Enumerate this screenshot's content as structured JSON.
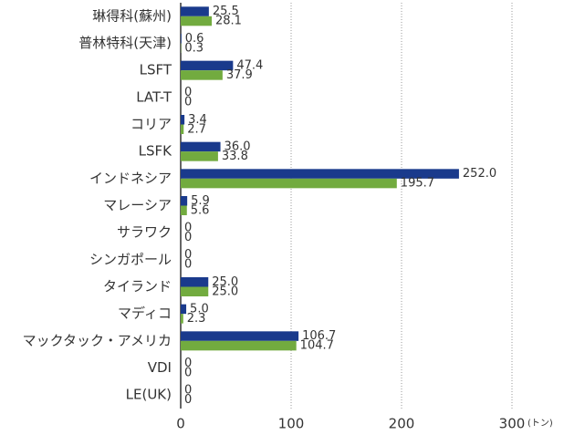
{
  "chart_data": {
    "type": "barh",
    "categories": [
      "琳得科(蘇州)",
      "普林特科(天津)",
      "LSFT",
      "LAT-T",
      "コリア",
      "LSFK",
      "インドネシア",
      "マレーシア",
      "サラワク",
      "シンガポール",
      "タイランド",
      "マディコ",
      "マックタック・アメリカ",
      "VDI",
      "LE(UK)"
    ],
    "series": [
      {
        "color": "#1a3a8c",
        "values": [
          25.5,
          0.6,
          47.4,
          0,
          3.4,
          36.0,
          252.0,
          5.9,
          0,
          0,
          25.0,
          5.0,
          106.7,
          0,
          0
        ],
        "value_labels": [
          "25.5",
          "0.6",
          "47.4",
          "0",
          "3.4",
          "36.0",
          "252.0",
          "5.9",
          "0",
          "0",
          "25.0",
          "5.0",
          "106.7",
          "0",
          "0"
        ]
      },
      {
        "color": "#72ab3f",
        "values": [
          28.1,
          0.3,
          37.9,
          0,
          2.7,
          33.8,
          195.7,
          5.6,
          0,
          0,
          25.0,
          2.3,
          104.7,
          0,
          0
        ],
        "value_labels": [
          "28.1",
          "0.3",
          "37.9",
          "0",
          "2.7",
          "33.8",
          "195.7",
          "5.6",
          "0",
          "0",
          "25.0",
          "2.3",
          "104.7",
          "0",
          "0"
        ]
      }
    ],
    "xlim": [
      0,
      300
    ],
    "xticks": [
      0,
      100,
      200,
      300
    ],
    "x_label": "(トン)",
    "grid": true
  }
}
